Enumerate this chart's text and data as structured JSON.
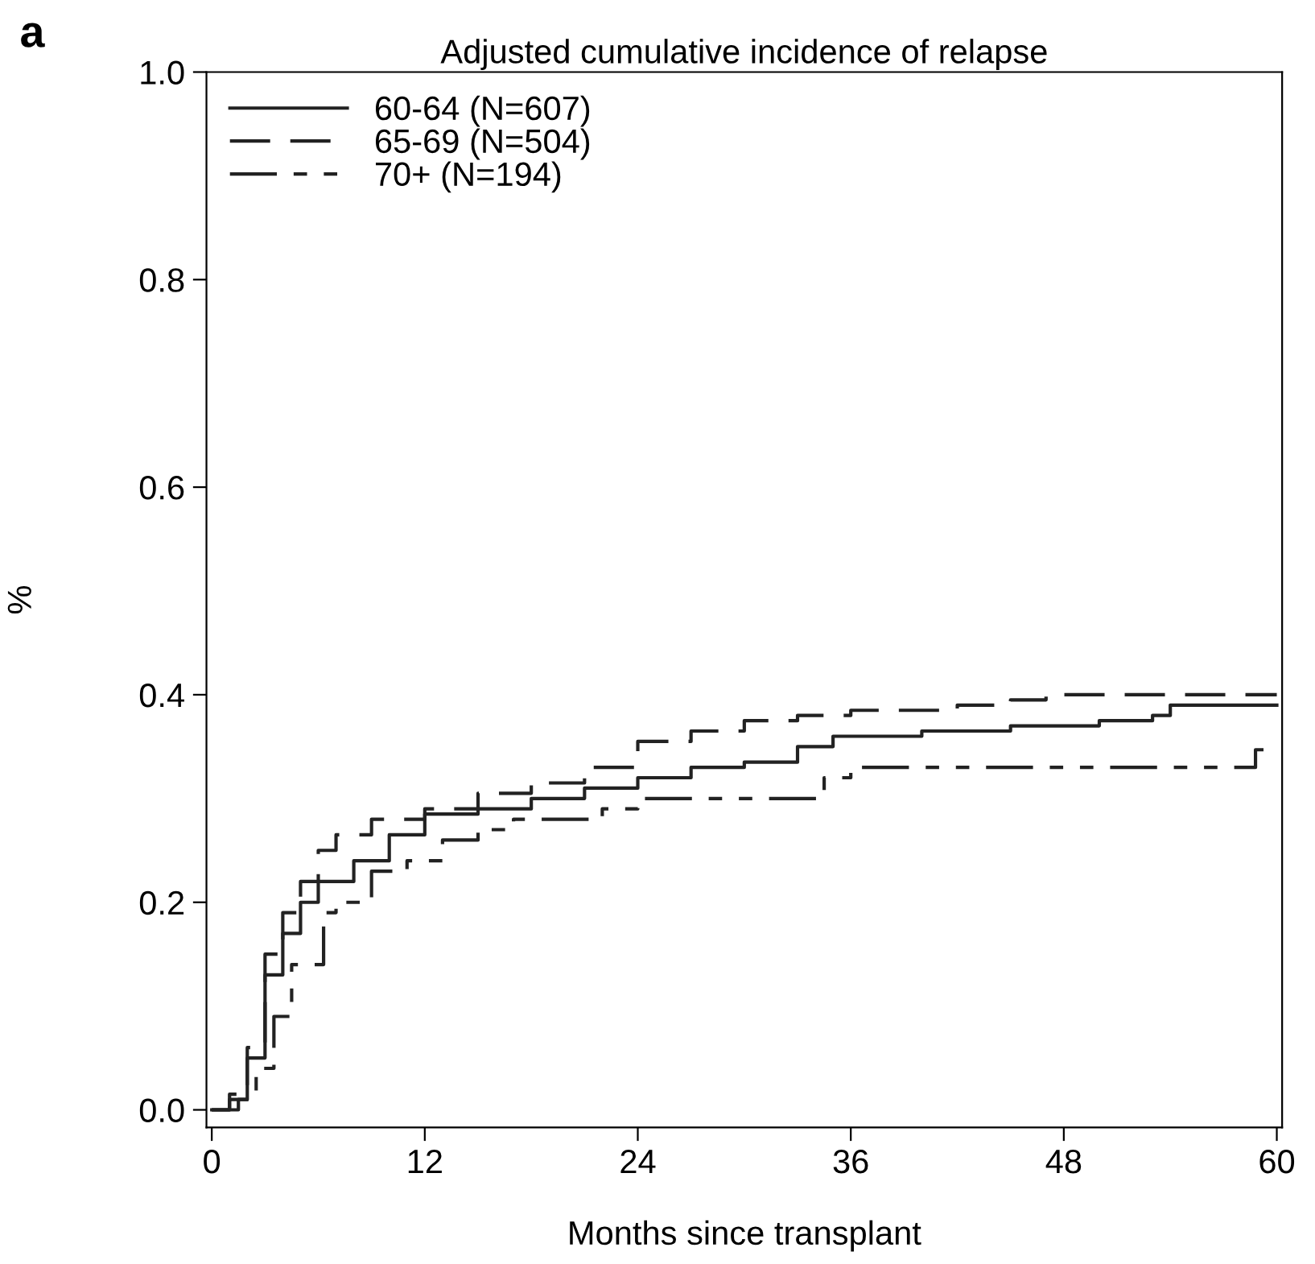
{
  "chart_data": {
    "type": "step",
    "title": "Adjusted cumulative incidence of relapse",
    "xlabel": "Months since transplant",
    "ylabel": "%",
    "annotations": [
      "a"
    ],
    "xlim": [
      -0.3,
      60.3
    ],
    "ylim": [
      -0.017,
      1.0
    ],
    "xticks": [
      0,
      12,
      24,
      36,
      48,
      60
    ],
    "yticks": [
      {
        "value": 0,
        "label": "0.0"
      },
      0.2,
      0.4,
      0.6,
      0.8,
      {
        "value": 1,
        "label": "1.0"
      }
    ],
    "grid": false,
    "legend": "top left",
    "marker": "none",
    "series": [
      {
        "name": "60-64 (N=607)",
        "color": "#222222",
        "line_style": "solid",
        "x": [
          0,
          1,
          2,
          3,
          4,
          5,
          6,
          8,
          10,
          12,
          15,
          18,
          21,
          24,
          27,
          30,
          33,
          35,
          40,
          45,
          50,
          53,
          54,
          60
        ],
        "values": [
          0,
          0.01,
          0.05,
          0.13,
          0.17,
          0.2,
          0.22,
          0.24,
          0.265,
          0.285,
          0.29,
          0.3,
          0.31,
          0.32,
          0.33,
          0.335,
          0.35,
          0.36,
          0.365,
          0.37,
          0.375,
          0.38,
          0.39,
          0.39
        ]
      },
      {
        "name": "65-69 (N=504)",
        "color": "#222222",
        "line_style": "dashed",
        "x": [
          0,
          1,
          2,
          3,
          4,
          5,
          6,
          7,
          9,
          12,
          15,
          18,
          21,
          24,
          27,
          30,
          33,
          36,
          42,
          45,
          47,
          60
        ],
        "values": [
          0,
          0.015,
          0.06,
          0.15,
          0.19,
          0.22,
          0.25,
          0.265,
          0.28,
          0.29,
          0.305,
          0.315,
          0.33,
          0.355,
          0.365,
          0.375,
          0.38,
          0.385,
          0.39,
          0.395,
          0.4,
          0.4
        ]
      },
      {
        "name": "70+ (N=194)",
        "color": "#222222",
        "line_style": "dotted",
        "x": [
          0,
          1.5,
          2.5,
          3.5,
          4.5,
          6,
          6.3,
          7,
          9,
          11,
          13,
          15,
          17,
          22,
          24,
          34,
          34.5,
          36,
          58.8,
          60
        ],
        "values": [
          0,
          0.01,
          0.04,
          0.09,
          0.14,
          0.14,
          0.19,
          0.2,
          0.23,
          0.24,
          0.26,
          0.27,
          0.28,
          0.29,
          0.3,
          0.3,
          0.32,
          0.33,
          0.347,
          0.347
        ]
      }
    ]
  }
}
